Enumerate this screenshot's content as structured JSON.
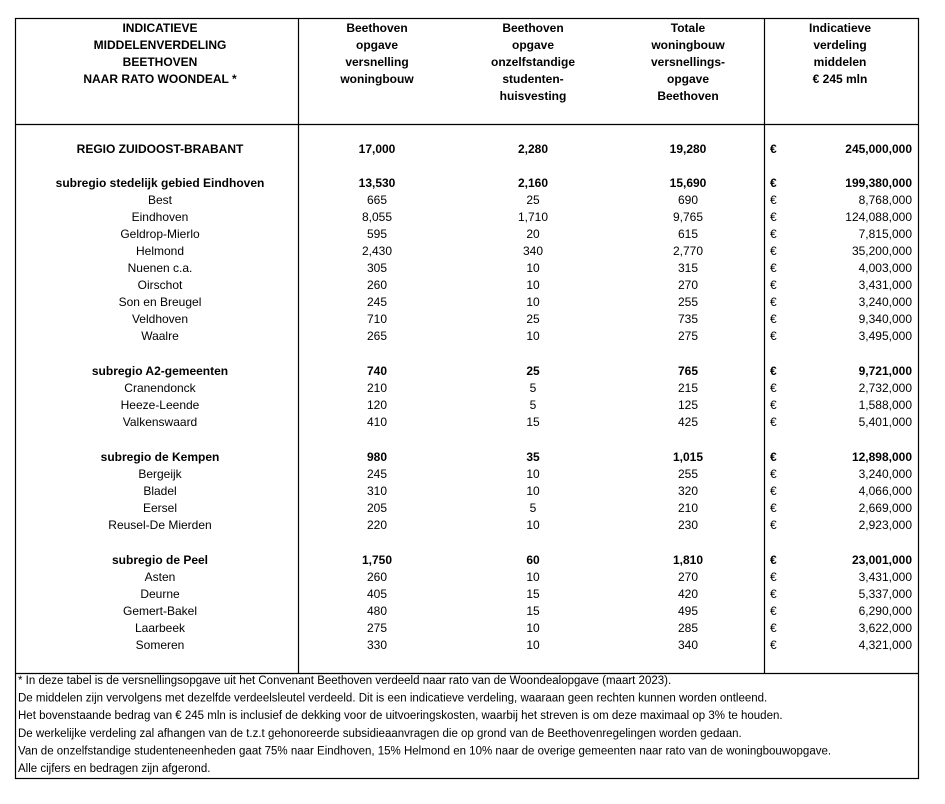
{
  "table": {
    "header": [
      [
        "INDICATIEVE",
        "MIDDELENVERDELING",
        "BEETHOVEN",
        "NAAR RATO WOONDEAL *"
      ],
      [
        "Beethoven",
        "opgave",
        "versnelling",
        "woningbouw"
      ],
      [
        "Beethoven",
        "opgave",
        "onzelfstandige",
        "studenten-",
        "huisvesting"
      ],
      [
        "Totale",
        "woningbouw",
        "versnellings-",
        "opgave",
        "Beethoven"
      ],
      [
        "Indicatieve",
        "verdeling",
        "middelen",
        "€ 245 mln"
      ]
    ],
    "currency": "€",
    "region": [
      "REGIO ZUIDOOST-BRABANT",
      "17,000",
      "2,280",
      "19,280",
      "245,000,000"
    ],
    "groups": [
      {
        "total": [
          "subregio stedelijk gebied Eindhoven",
          "13,530",
          "2,160",
          "15,690",
          "199,380,000"
        ],
        "rows": [
          [
            "Best",
            "665",
            "25",
            "690",
            "8,768,000"
          ],
          [
            "Eindhoven",
            "8,055",
            "1,710",
            "9,765",
            "124,088,000"
          ],
          [
            "Geldrop-Mierlo",
            "595",
            "20",
            "615",
            "7,815,000"
          ],
          [
            "Helmond",
            "2,430",
            "340",
            "2,770",
            "35,200,000"
          ],
          [
            "Nuenen c.a.",
            "305",
            "10",
            "315",
            "4,003,000"
          ],
          [
            "Oirschot",
            "260",
            "10",
            "270",
            "3,431,000"
          ],
          [
            "Son en Breugel",
            "245",
            "10",
            "255",
            "3,240,000"
          ],
          [
            "Veldhoven",
            "710",
            "25",
            "735",
            "9,340,000"
          ],
          [
            "Waalre",
            "265",
            "10",
            "275",
            "3,495,000"
          ]
        ]
      },
      {
        "total": [
          "subregio A2-gemeenten",
          "740",
          "25",
          "765",
          "9,721,000"
        ],
        "rows": [
          [
            "Cranendonck",
            "210",
            "5",
            "215",
            "2,732,000"
          ],
          [
            "Heeze-Leende",
            "120",
            "5",
            "125",
            "1,588,000"
          ],
          [
            "Valkenswaard",
            "410",
            "15",
            "425",
            "5,401,000"
          ]
        ]
      },
      {
        "total": [
          "subregio de Kempen",
          "980",
          "35",
          "1,015",
          "12,898,000"
        ],
        "rows": [
          [
            "Bergeijk",
            "245",
            "10",
            "255",
            "3,240,000"
          ],
          [
            "Bladel",
            "310",
            "10",
            "320",
            "4,066,000"
          ],
          [
            "Eersel",
            "205",
            "5",
            "210",
            "2,669,000"
          ],
          [
            "Reusel-De Mierden",
            "220",
            "10",
            "230",
            "2,923,000"
          ]
        ]
      },
      {
        "total": [
          "subregio de Peel",
          "1,750",
          "60",
          "1,810",
          "23,001,000"
        ],
        "rows": [
          [
            "Asten",
            "260",
            "10",
            "270",
            "3,431,000"
          ],
          [
            "Deurne",
            "405",
            "15",
            "420",
            "5,337,000"
          ],
          [
            "Gemert-Bakel",
            "480",
            "15",
            "495",
            "6,290,000"
          ],
          [
            "Laarbeek",
            "275",
            "10",
            "285",
            "3,622,000"
          ],
          [
            "Someren",
            "330",
            "10",
            "340",
            "4,321,000"
          ]
        ]
      }
    ],
    "notes": [
      "* In deze tabel is de versnellingsopgave uit het Convenant Beethoven verdeeld naar rato van de Woondealopgave (maart 2023).",
      "De middelen zijn vervolgens met dezelfde verdeelsleutel verdeeld. Dit is een indicatieve verdeling, waaraan geen rechten kunnen worden ontleend.",
      "Het bovenstaande bedrag van € 245 mln is inclusief de dekking voor de uitvoeringskosten, waarbij het streven is om deze maximaal op 3% te houden.",
      "De werkelijke verdeling zal afhangen van de t.z.t gehonoreerde subsidieaanvragen die op grond van de Beethovenregelingen worden gedaan.",
      "Van de onzelfstandige studenteneenheden gaat 75% naar Eindhoven, 15% Helmond en 10% naar de overige gemeenten naar rato van de woningbouwopgave.",
      "Alle cijfers en bedragen zijn afgerond."
    ]
  }
}
